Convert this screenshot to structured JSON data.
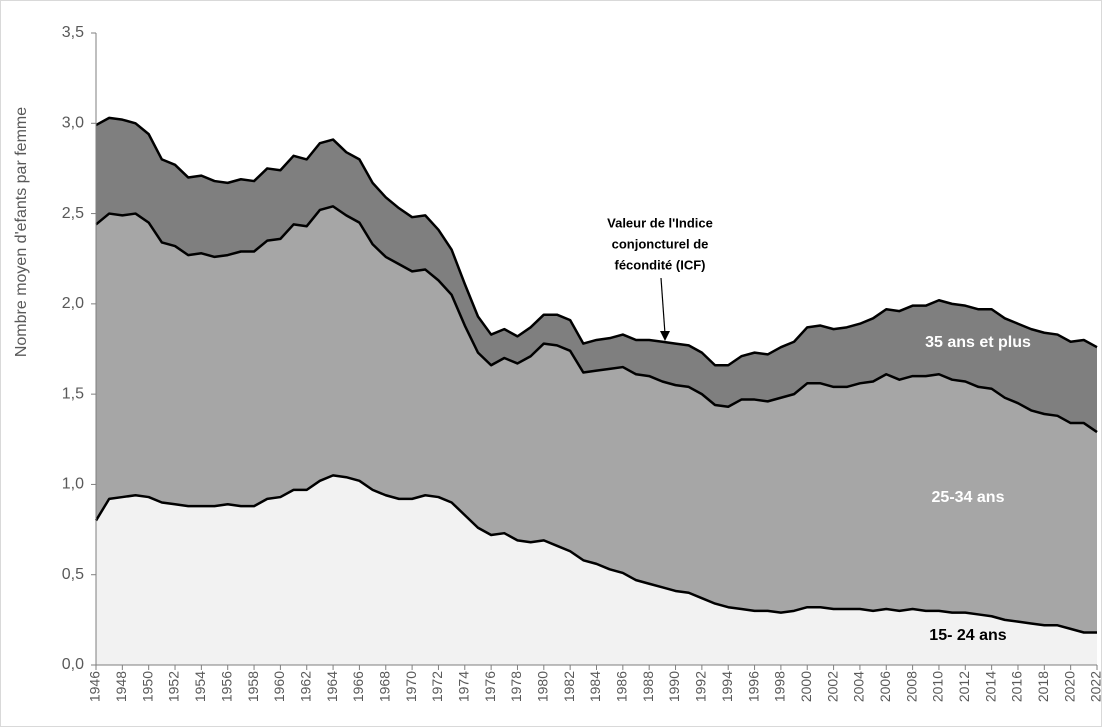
{
  "chart_data": {
    "type": "stacked_area",
    "y_label": "Nombre moyen d'efants par femme",
    "annotation": [
      "Valeur de l'Indice",
      "conjoncturel de",
      "fécondité (ICF)"
    ],
    "x": [
      1946,
      1947,
      1948,
      1949,
      1950,
      1951,
      1952,
      1953,
      1954,
      1955,
      1956,
      1957,
      1958,
      1959,
      1960,
      1961,
      1962,
      1963,
      1964,
      1965,
      1966,
      1967,
      1968,
      1969,
      1970,
      1971,
      1972,
      1973,
      1974,
      1975,
      1976,
      1977,
      1978,
      1979,
      1980,
      1981,
      1982,
      1983,
      1984,
      1985,
      1986,
      1987,
      1988,
      1989,
      1990,
      1991,
      1992,
      1993,
      1994,
      1995,
      1996,
      1997,
      1998,
      1999,
      2000,
      2001,
      2002,
      2003,
      2004,
      2005,
      2006,
      2007,
      2008,
      2009,
      2010,
      2011,
      2012,
      2013,
      2014,
      2015,
      2016,
      2017,
      2018,
      2019,
      2020,
      2021,
      2022
    ],
    "xlim": [
      1946,
      2022
    ],
    "xticks": [
      1946,
      1948,
      1950,
      1952,
      1954,
      1956,
      1958,
      1960,
      1962,
      1964,
      1966,
      1968,
      1970,
      1972,
      1974,
      1976,
      1978,
      1980,
      1982,
      1984,
      1986,
      1988,
      1990,
      1992,
      1994,
      1996,
      1998,
      2000,
      2002,
      2004,
      2006,
      2008,
      2010,
      2012,
      2014,
      2016,
      2018,
      2020,
      2022
    ],
    "ylim": [
      0,
      3.5
    ],
    "yticks": [
      {
        "value": 0,
        "label": "0,0"
      },
      {
        "value": 0.5,
        "label": "0,5"
      },
      {
        "value": 1,
        "label": "1,0"
      },
      {
        "value": 1.5,
        "label": "1,5"
      },
      {
        "value": 2,
        "label": "2,0"
      },
      {
        "value": 2.5,
        "label": "2,5"
      },
      {
        "value": 3,
        "label": "3,0"
      },
      {
        "value": 3.5,
        "label": "3,5"
      }
    ],
    "series": [
      {
        "name": "15- 24 ans",
        "color": "#f2f2f2",
        "values": [
          0.8,
          0.92,
          0.93,
          0.94,
          0.93,
          0.9,
          0.89,
          0.88,
          0.88,
          0.88,
          0.89,
          0.88,
          0.88,
          0.92,
          0.93,
          0.97,
          0.97,
          1.02,
          1.05,
          1.04,
          1.02,
          0.97,
          0.94,
          0.92,
          0.92,
          0.94,
          0.93,
          0.9,
          0.83,
          0.76,
          0.72,
          0.73,
          0.69,
          0.68,
          0.69,
          0.66,
          0.63,
          0.58,
          0.56,
          0.53,
          0.51,
          0.47,
          0.45,
          0.43,
          0.41,
          0.4,
          0.37,
          0.34,
          0.32,
          0.31,
          0.3,
          0.3,
          0.29,
          0.3,
          0.32,
          0.32,
          0.31,
          0.31,
          0.31,
          0.3,
          0.31,
          0.3,
          0.31,
          0.3,
          0.3,
          0.29,
          0.29,
          0.28,
          0.27,
          0.25,
          0.24,
          0.23,
          0.22,
          0.22,
          0.2,
          0.18,
          0.18
        ]
      },
      {
        "name": "25-34 ans",
        "color": "#a6a6a6",
        "values": [
          1.64,
          1.58,
          1.56,
          1.56,
          1.52,
          1.44,
          1.43,
          1.39,
          1.4,
          1.38,
          1.38,
          1.41,
          1.41,
          1.43,
          1.43,
          1.47,
          1.46,
          1.5,
          1.49,
          1.45,
          1.43,
          1.36,
          1.32,
          1.3,
          1.26,
          1.25,
          1.2,
          1.15,
          1.05,
          0.97,
          0.94,
          0.97,
          0.98,
          1.03,
          1.09,
          1.11,
          1.11,
          1.04,
          1.07,
          1.11,
          1.14,
          1.14,
          1.15,
          1.14,
          1.14,
          1.14,
          1.13,
          1.1,
          1.11,
          1.16,
          1.17,
          1.16,
          1.19,
          1.2,
          1.24,
          1.24,
          1.23,
          1.23,
          1.25,
          1.27,
          1.3,
          1.28,
          1.29,
          1.3,
          1.31,
          1.29,
          1.28,
          1.26,
          1.26,
          1.23,
          1.21,
          1.18,
          1.17,
          1.16,
          1.14,
          1.16,
          1.11
        ]
      },
      {
        "name": "35 ans et plus",
        "color": "#7f7f7f",
        "values": [
          0.55,
          0.53,
          0.53,
          0.5,
          0.49,
          0.46,
          0.45,
          0.43,
          0.43,
          0.42,
          0.4,
          0.4,
          0.39,
          0.4,
          0.38,
          0.38,
          0.37,
          0.37,
          0.37,
          0.35,
          0.35,
          0.34,
          0.33,
          0.31,
          0.3,
          0.3,
          0.28,
          0.25,
          0.23,
          0.2,
          0.17,
          0.16,
          0.15,
          0.16,
          0.16,
          0.17,
          0.17,
          0.16,
          0.17,
          0.17,
          0.18,
          0.19,
          0.2,
          0.22,
          0.23,
          0.23,
          0.23,
          0.22,
          0.23,
          0.24,
          0.26,
          0.26,
          0.28,
          0.29,
          0.31,
          0.32,
          0.32,
          0.33,
          0.33,
          0.35,
          0.36,
          0.38,
          0.39,
          0.39,
          0.41,
          0.42,
          0.42,
          0.43,
          0.44,
          0.44,
          0.44,
          0.45,
          0.45,
          0.45,
          0.45,
          0.46,
          0.47
        ]
      }
    ]
  }
}
